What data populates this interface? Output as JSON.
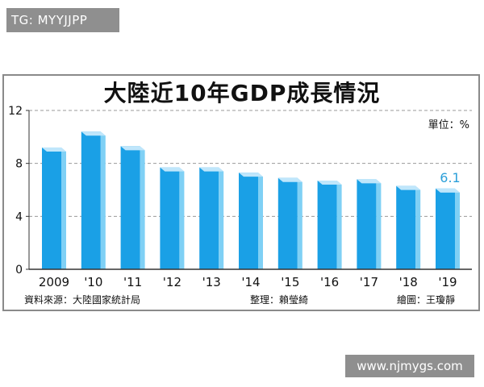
{
  "watermarks": {
    "top": "TG: MYYJJPP",
    "bottom": "www.njmygs.com"
  },
  "colors": {
    "bar_front": "#1aa0e6",
    "bar_side": "#7fd0f5",
    "bar_top": "#bfe6fb",
    "grid": "#999999",
    "frame": "#8a8a8a",
    "label_highlight": "#2b9fd9"
  },
  "chart_data": {
    "type": "bar",
    "title": "大陸近10年GDP成長情況",
    "unit_label": "單位：%",
    "categories": [
      "2009",
      "'10",
      "'11",
      "'12",
      "'13",
      "'14",
      "'15",
      "'16",
      "'17",
      "'18",
      "'19"
    ],
    "values": [
      9.2,
      10.4,
      9.3,
      7.7,
      7.7,
      7.3,
      6.9,
      6.7,
      6.8,
      6.3,
      6.1
    ],
    "data_labels": [
      {
        "index": 10,
        "text": "6.1"
      }
    ],
    "y_ticks": [
      "0",
      "4",
      "8",
      "12"
    ],
    "ylim": [
      0,
      12
    ],
    "grid": "dashed",
    "source": "資料來源：大陸國家統計局",
    "editor": "整理：賴瑩綺",
    "illustrator": "繪圖：王瓊靜"
  }
}
